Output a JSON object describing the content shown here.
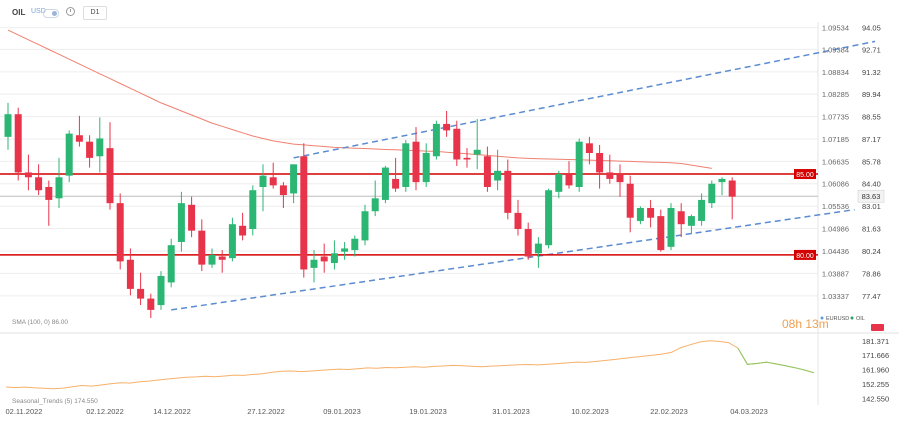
{
  "toolbar": {
    "symbol": "OIL",
    "pair_label": "USD",
    "timeframe": "D1"
  },
  "chart_data": {
    "type": "candlestick",
    "instrument": "OIL",
    "x_tick_labels": [
      "02.11.2022",
      "02.12.2022",
      "14.12.2022",
      "27.12.2022",
      "09.01.2023",
      "19.01.2023",
      "31.01.2023",
      "10.02.2023",
      "22.02.2023",
      "04.03.2023"
    ],
    "y_left_ticks_eurusd": [
      "1.09534",
      "1.09384",
      "1.08834",
      "1.08285",
      "1.07735",
      "1.07185",
      "1.06635",
      "1.06086",
      "1.05536",
      "1.04986",
      "1.04436",
      "1.03887",
      "1.03337"
    ],
    "y_right_ticks_oil": [
      "94.05",
      "92.71",
      "91.32",
      "89.94",
      "88.55",
      "87.17",
      "85.78",
      "84.40",
      "83.01",
      "81.63",
      "80.24",
      "78.86",
      "77.47"
    ],
    "ylim": [
      76.1,
      94.4
    ],
    "horizontal_levels": [
      {
        "label": "85.00",
        "value": 85.0,
        "color": "#d40000"
      },
      {
        "label": "80.00",
        "value": 80.0,
        "color": "#d40000"
      }
    ],
    "current_price": {
      "label": "83.63",
      "value": 83.63
    },
    "candles": [
      {
        "o": 87.3,
        "h": 89.4,
        "l": 86.5,
        "c": 88.7
      },
      {
        "o": 88.7,
        "h": 89.1,
        "l": 84.6,
        "c": 85.1
      },
      {
        "o": 85.1,
        "h": 86.2,
        "l": 84.0,
        "c": 84.8
      },
      {
        "o": 84.8,
        "h": 85.6,
        "l": 83.7,
        "c": 84.0
      },
      {
        "o": 84.2,
        "h": 84.6,
        "l": 81.8,
        "c": 83.4
      },
      {
        "o": 83.5,
        "h": 86.0,
        "l": 82.9,
        "c": 84.8
      },
      {
        "o": 84.9,
        "h": 87.7,
        "l": 84.5,
        "c": 87.5
      },
      {
        "o": 87.4,
        "h": 88.6,
        "l": 86.7,
        "c": 87.0
      },
      {
        "o": 87.0,
        "h": 87.4,
        "l": 85.4,
        "c": 86.0
      },
      {
        "o": 86.1,
        "h": 88.5,
        "l": 85.1,
        "c": 87.2
      },
      {
        "o": 86.6,
        "h": 88.2,
        "l": 82.8,
        "c": 83.2
      },
      {
        "o": 83.2,
        "h": 83.8,
        "l": 79.1,
        "c": 79.6
      },
      {
        "o": 79.7,
        "h": 80.4,
        "l": 77.5,
        "c": 77.9
      },
      {
        "o": 77.9,
        "h": 78.9,
        "l": 76.9,
        "c": 77.3
      },
      {
        "o": 77.3,
        "h": 77.6,
        "l": 76.1,
        "c": 76.6
      },
      {
        "o": 76.9,
        "h": 79.0,
        "l": 76.6,
        "c": 78.7
      },
      {
        "o": 78.3,
        "h": 81.0,
        "l": 78.0,
        "c": 80.6
      },
      {
        "o": 80.8,
        "h": 83.9,
        "l": 80.2,
        "c": 83.2
      },
      {
        "o": 83.1,
        "h": 83.6,
        "l": 81.1,
        "c": 81.5
      },
      {
        "o": 81.5,
        "h": 82.2,
        "l": 79.0,
        "c": 79.4
      },
      {
        "o": 79.4,
        "h": 80.4,
        "l": 79.2,
        "c": 80.0
      },
      {
        "o": 79.9,
        "h": 80.3,
        "l": 78.9,
        "c": 79.7
      },
      {
        "o": 79.8,
        "h": 82.3,
        "l": 79.6,
        "c": 81.9
      },
      {
        "o": 81.8,
        "h": 82.6,
        "l": 80.9,
        "c": 81.2
      },
      {
        "o": 81.6,
        "h": 84.3,
        "l": 81.2,
        "c": 84.0
      },
      {
        "o": 84.2,
        "h": 85.6,
        "l": 82.7,
        "c": 84.9
      },
      {
        "o": 84.8,
        "h": 85.7,
        "l": 84.1,
        "c": 84.3
      },
      {
        "o": 84.3,
        "h": 84.5,
        "l": 82.9,
        "c": 83.7
      },
      {
        "o": 83.8,
        "h": 85.6,
        "l": 83.2,
        "c": 85.6
      },
      {
        "o": 86.1,
        "h": 86.9,
        "l": 78.6,
        "c": 79.1
      },
      {
        "o": 79.2,
        "h": 80.3,
        "l": 78.3,
        "c": 79.7
      },
      {
        "o": 79.9,
        "h": 80.7,
        "l": 78.9,
        "c": 79.6
      },
      {
        "o": 79.5,
        "h": 80.9,
        "l": 79.1,
        "c": 80.1
      },
      {
        "o": 80.2,
        "h": 80.8,
        "l": 79.7,
        "c": 80.4
      },
      {
        "o": 80.3,
        "h": 81.2,
        "l": 79.9,
        "c": 81.0
      },
      {
        "o": 80.9,
        "h": 83.1,
        "l": 80.6,
        "c": 82.7
      },
      {
        "o": 82.7,
        "h": 84.6,
        "l": 82.4,
        "c": 83.5
      },
      {
        "o": 83.4,
        "h": 85.5,
        "l": 83.2,
        "c": 85.4
      },
      {
        "o": 84.7,
        "h": 86.0,
        "l": 83.9,
        "c": 84.1
      },
      {
        "o": 84.2,
        "h": 87.1,
        "l": 83.9,
        "c": 86.9
      },
      {
        "o": 87.0,
        "h": 87.9,
        "l": 84.0,
        "c": 84.5
      },
      {
        "o": 84.5,
        "h": 86.9,
        "l": 84.2,
        "c": 86.3
      },
      {
        "o": 86.1,
        "h": 88.3,
        "l": 85.9,
        "c": 88.1
      },
      {
        "o": 88.1,
        "h": 88.9,
        "l": 87.3,
        "c": 87.7
      },
      {
        "o": 87.8,
        "h": 88.3,
        "l": 85.5,
        "c": 85.9
      },
      {
        "o": 86.0,
        "h": 86.6,
        "l": 85.4,
        "c": 85.9
      },
      {
        "o": 86.2,
        "h": 88.4,
        "l": 85.3,
        "c": 86.5
      },
      {
        "o": 86.1,
        "h": 86.7,
        "l": 83.9,
        "c": 84.2
      },
      {
        "o": 84.6,
        "h": 86.5,
        "l": 84.0,
        "c": 85.2
      },
      {
        "o": 85.2,
        "h": 85.9,
        "l": 82.2,
        "c": 82.6
      },
      {
        "o": 82.6,
        "h": 83.4,
        "l": 81.2,
        "c": 81.6
      },
      {
        "o": 81.6,
        "h": 82.0,
        "l": 79.7,
        "c": 79.9
      },
      {
        "o": 80.1,
        "h": 81.1,
        "l": 79.2,
        "c": 80.7
      },
      {
        "o": 80.6,
        "h": 84.1,
        "l": 80.4,
        "c": 84.0
      },
      {
        "o": 83.9,
        "h": 85.2,
        "l": 83.5,
        "c": 85.0
      },
      {
        "o": 85.0,
        "h": 85.8,
        "l": 84.1,
        "c": 84.3
      },
      {
        "o": 84.2,
        "h": 87.2,
        "l": 83.9,
        "c": 87.0
      },
      {
        "o": 86.9,
        "h": 87.3,
        "l": 85.6,
        "c": 86.3
      },
      {
        "o": 86.3,
        "h": 86.8,
        "l": 84.1,
        "c": 85.1
      },
      {
        "o": 85.1,
        "h": 86.2,
        "l": 84.4,
        "c": 84.7
      },
      {
        "o": 85.0,
        "h": 85.6,
        "l": 83.6,
        "c": 84.5
      },
      {
        "o": 84.4,
        "h": 84.9,
        "l": 81.4,
        "c": 82.3
      },
      {
        "o": 82.1,
        "h": 83.0,
        "l": 81.9,
        "c": 82.9
      },
      {
        "o": 82.9,
        "h": 83.4,
        "l": 81.7,
        "c": 82.3
      },
      {
        "o": 82.4,
        "h": 82.8,
        "l": 80.2,
        "c": 80.3
      },
      {
        "o": 80.5,
        "h": 83.2,
        "l": 80.3,
        "c": 82.9
      },
      {
        "o": 82.7,
        "h": 83.2,
        "l": 81.1,
        "c": 81.9
      },
      {
        "o": 81.8,
        "h": 82.5,
        "l": 81.3,
        "c": 82.4
      },
      {
        "o": 82.1,
        "h": 83.8,
        "l": 81.8,
        "c": 83.4
      },
      {
        "o": 83.2,
        "h": 84.6,
        "l": 82.9,
        "c": 84.4
      },
      {
        "o": 84.5,
        "h": 84.8,
        "l": 83.7,
        "c": 84.7
      },
      {
        "o": 84.6,
        "h": 84.8,
        "l": 82.2,
        "c": 83.6
      }
    ],
    "sma": {
      "label": "SMA (100, 0) 86.00",
      "color": "#f08070",
      "values": [
        93.9,
        93.6,
        93.3,
        93.0,
        92.7,
        92.4,
        92.1,
        91.8,
        91.5,
        91.2,
        90.9,
        90.6,
        90.3,
        90.0,
        89.7,
        89.4,
        89.15,
        88.9,
        88.65,
        88.4,
        88.15,
        87.95,
        87.75,
        87.55,
        87.35,
        87.2,
        87.05,
        86.95,
        86.85,
        86.8,
        86.75,
        86.7,
        86.65,
        86.62,
        86.6,
        86.58,
        86.55,
        86.52,
        86.5,
        86.47,
        86.45,
        86.42,
        86.4,
        86.35,
        86.3,
        86.25,
        86.2,
        86.15,
        86.1,
        86.05,
        86.0,
        85.97,
        85.95,
        85.93,
        85.92,
        85.9,
        85.88,
        85.86,
        85.84,
        85.82,
        85.8,
        85.78,
        85.76,
        85.74,
        85.72,
        85.7,
        85.65,
        85.55,
        85.45,
        85.35
      ]
    },
    "channel_lines": [
      {
        "name": "upper",
        "points": [
          [
            28,
            86.0
          ],
          [
            85,
            93.2
          ]
        ],
        "style": "dashed",
        "color": "#5b8bd0"
      },
      {
        "name": "lower",
        "points": [
          [
            16,
            76.6
          ],
          [
            83,
            82.8
          ]
        ],
        "style": "dashed",
        "color": "#5b8bd0"
      }
    ],
    "countdown": "08h 13m",
    "legend_right": [
      {
        "label": "EURUSD",
        "color": "#5aa0e0"
      },
      {
        "label": "OIL",
        "color": "#2aa36a"
      }
    ],
    "seasonal_panel": {
      "label": "Seasonal_Trends (5) 174.550",
      "color": "#f7b06a",
      "ylim": [
        138.0,
        184.0
      ],
      "y_ticks": [
        "181.371",
        "171.666",
        "161.960",
        "152.255",
        "142.550"
      ],
      "values": [
        150.2,
        149.8,
        150.1,
        149.6,
        149.3,
        149.0,
        149.4,
        150.3,
        151.2,
        150.8,
        151.5,
        152.4,
        153.1,
        152.8,
        153.6,
        154.2,
        154.9,
        155.6,
        156.2,
        156.8,
        157.0,
        157.4,
        157.1,
        157.6,
        158.2,
        158.0,
        158.7,
        159.2,
        160.2,
        160.8,
        161.0,
        160.6,
        160.9,
        161.4,
        161.8,
        162.3,
        162.0,
        162.5,
        163.1,
        162.8,
        163.4,
        163.2,
        163.6,
        163.9,
        163.5,
        164.1,
        164.4,
        164.8,
        164.5,
        164.2,
        163.9,
        164.3,
        164.6,
        164.9,
        165.2,
        165.4,
        165.1,
        165.6,
        166.0,
        166.5,
        167.0,
        166.8,
        167.4,
        168.1,
        168.8,
        169.5,
        170.3,
        171.0,
        171.6,
        172.4,
        173.6,
        176.8,
        178.8,
        180.6,
        181.4,
        181.0,
        180.2,
        176.5,
        165.5,
        166.1,
        167.0,
        165.8,
        164.5,
        163.2,
        161.7,
        159.8
      ]
    }
  }
}
